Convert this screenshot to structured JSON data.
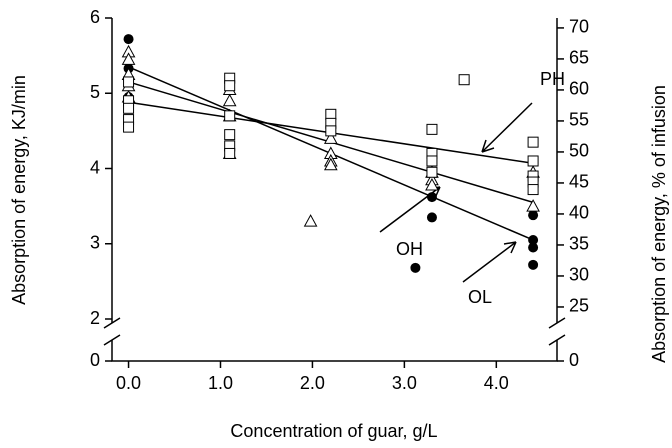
{
  "chart_data": {
    "type": "scatter",
    "x_label": "Concentration of guar, g/L",
    "y_label": "Absorption of energy, KJ/min",
    "y2_label": "Absorption of energy, % of infusion",
    "xlim": [
      -0.18,
      4.66
    ],
    "xticks": [
      {
        "value": 0,
        "label": "0.0"
      },
      {
        "value": 1,
        "label": "1.0"
      },
      {
        "value": 2,
        "label": "2.0"
      },
      {
        "value": 3,
        "label": "3.0"
      },
      {
        "value": 4,
        "label": "4.0"
      }
    ],
    "ylim": [
      0,
      6
    ],
    "ybreak": [
      0,
      2
    ],
    "yticks": [
      0,
      2,
      3,
      4,
      5,
      6
    ],
    "y2lim": [
      0,
      71.6
    ],
    "y2break": [
      0,
      23.06
    ],
    "y2ticks": [
      0,
      25,
      30,
      35,
      40,
      45,
      50,
      55,
      60,
      65,
      70
    ],
    "series": [
      {
        "name": "OL",
        "marker": "filled-circle",
        "color": "#000000",
        "x": [
          0,
          0,
          0,
          3.3,
          3.3,
          3.12,
          4.4,
          4.4,
          4.4,
          4.4
        ],
        "values": [
          5.72,
          5.33,
          4.95,
          3.62,
          3.35,
          2.68,
          3.38,
          3.05,
          2.95,
          2.72
        ],
        "fit": {
          "x": [
            0,
            4.4
          ],
          "values": [
            5.35,
            3.05
          ]
        }
      },
      {
        "name": "OH",
        "marker": "triangle",
        "color": "#000000",
        "x": [
          0,
          0,
          0,
          0,
          0,
          1.1,
          1.1,
          1.1,
          1.1,
          2.2,
          2.2,
          2.2,
          2.2,
          3.3,
          3.3,
          3.3,
          4.4,
          4.4,
          1.98
        ],
        "values": [
          5.55,
          5.45,
          5.25,
          5.1,
          4.95,
          5.05,
          4.9,
          4.7,
          4.2,
          4.4,
          4.2,
          4.1,
          4.05,
          3.95,
          3.85,
          3.78,
          3.95,
          3.5,
          3.3
        ],
        "fit": {
          "x": [
            0,
            4.4
          ],
          "values": [
            5.15,
            3.55
          ]
        }
      },
      {
        "name": "PH",
        "marker": "square",
        "color": "#000000",
        "x": [
          0,
          0,
          0,
          0,
          0,
          1.1,
          1.1,
          1.1,
          1.1,
          1.1,
          1.1,
          2.2,
          2.2,
          2.2,
          3.3,
          3.3,
          3.3,
          3.3,
          4.4,
          4.4,
          4.4,
          4.4,
          4.4,
          3.65
        ],
        "values": [
          5.15,
          4.9,
          4.8,
          4.65,
          4.55,
          5.2,
          5.1,
          4.7,
          4.45,
          4.3,
          4.2,
          4.72,
          4.6,
          4.5,
          4.52,
          4.2,
          4.1,
          3.95,
          4.35,
          4.1,
          3.9,
          3.82,
          3.72,
          5.18
        ],
        "fit": {
          "x": [
            0,
            4.4
          ],
          "values": [
            4.88,
            4.07
          ]
        }
      }
    ]
  }
}
